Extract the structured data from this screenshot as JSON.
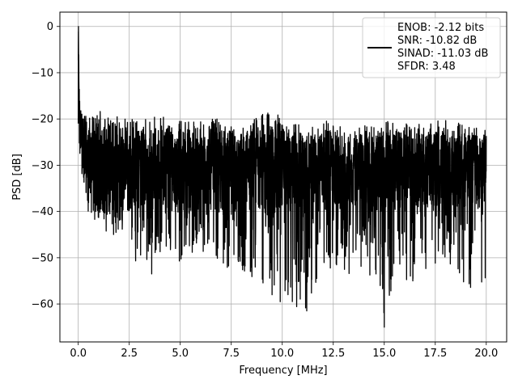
{
  "chart_data": {
    "type": "line",
    "title": "",
    "xlabel": "Frequency [MHz]",
    "ylabel": "PSD [dB]",
    "xlim": [
      -0.9,
      21.0
    ],
    "ylim": [
      -68.2,
      3.1
    ],
    "xticks": [
      0.0,
      2.5,
      5.0,
      7.5,
      10.0,
      12.5,
      15.0,
      17.5,
      20.0
    ],
    "xtick_labels": [
      "0.0",
      "2.5",
      "5.0",
      "7.5",
      "10.0",
      "12.5",
      "15.0",
      "17.5",
      "20.0"
    ],
    "yticks": [
      0,
      -10,
      -20,
      -30,
      -40,
      -50,
      -60
    ],
    "ytick_labels": [
      "0",
      "−10",
      "−20",
      "−30",
      "−40",
      "−50",
      "−60"
    ],
    "grid": true,
    "legend_position": "top-right",
    "legend_lines": [
      "ENOB: -2.12 bits",
      "SNR: -10.82 dB",
      "SINAD: -11.03 dB",
      "SFDR: 3.48"
    ],
    "series": [
      {
        "color": "#000000",
        "x": [
          0.0,
          0.05,
          0.1,
          0.15,
          0.2,
          0.3,
          0.4,
          0.5,
          0.6,
          0.8,
          1.0,
          1.5,
          2.0,
          3.0,
          4.0,
          5.0,
          6.0,
          7.0,
          8.0,
          9.0,
          9.9,
          10.0,
          11.0,
          11.2,
          12.0,
          13.0,
          14.0,
          14.9,
          15.0,
          16.0,
          17.0,
          18.0,
          19.0,
          20.0
        ],
        "upper": [
          0,
          -9,
          -14,
          -16,
          -17,
          -18,
          -20,
          -19,
          -20,
          -19,
          -18,
          -19,
          -19,
          -20,
          -19,
          -20,
          -20,
          -20,
          -21,
          -19,
          -17,
          -21,
          -21,
          -22,
          -20,
          -22,
          -21,
          -21,
          -20,
          -21,
          -21,
          -20,
          -21,
          -22
        ],
        "lower": [
          -21,
          -26,
          -30,
          -32,
          -35,
          -37,
          -38,
          -43,
          -40,
          -44,
          -44,
          -45,
          -45,
          -53,
          -49,
          -51,
          -49,
          -52,
          -53,
          -58,
          -55,
          -60,
          -61,
          -61,
          -53,
          -54,
          -53,
          -56,
          -65,
          -58,
          -53,
          -50,
          -57,
          -55
        ],
        "baseline_median": -31
      }
    ],
    "notable_minima": [
      {
        "x": 3.6,
        "y": -53.5
      },
      {
        "x": 8.5,
        "y": -53.0
      },
      {
        "x": 9.5,
        "y": -58.0
      },
      {
        "x": 9.9,
        "y": -59.5
      },
      {
        "x": 11.2,
        "y": -61.5
      },
      {
        "x": 14.8,
        "y": -56.0
      },
      {
        "x": 15.0,
        "y": -65.0
      },
      {
        "x": 16.4,
        "y": -55.0
      }
    ]
  }
}
